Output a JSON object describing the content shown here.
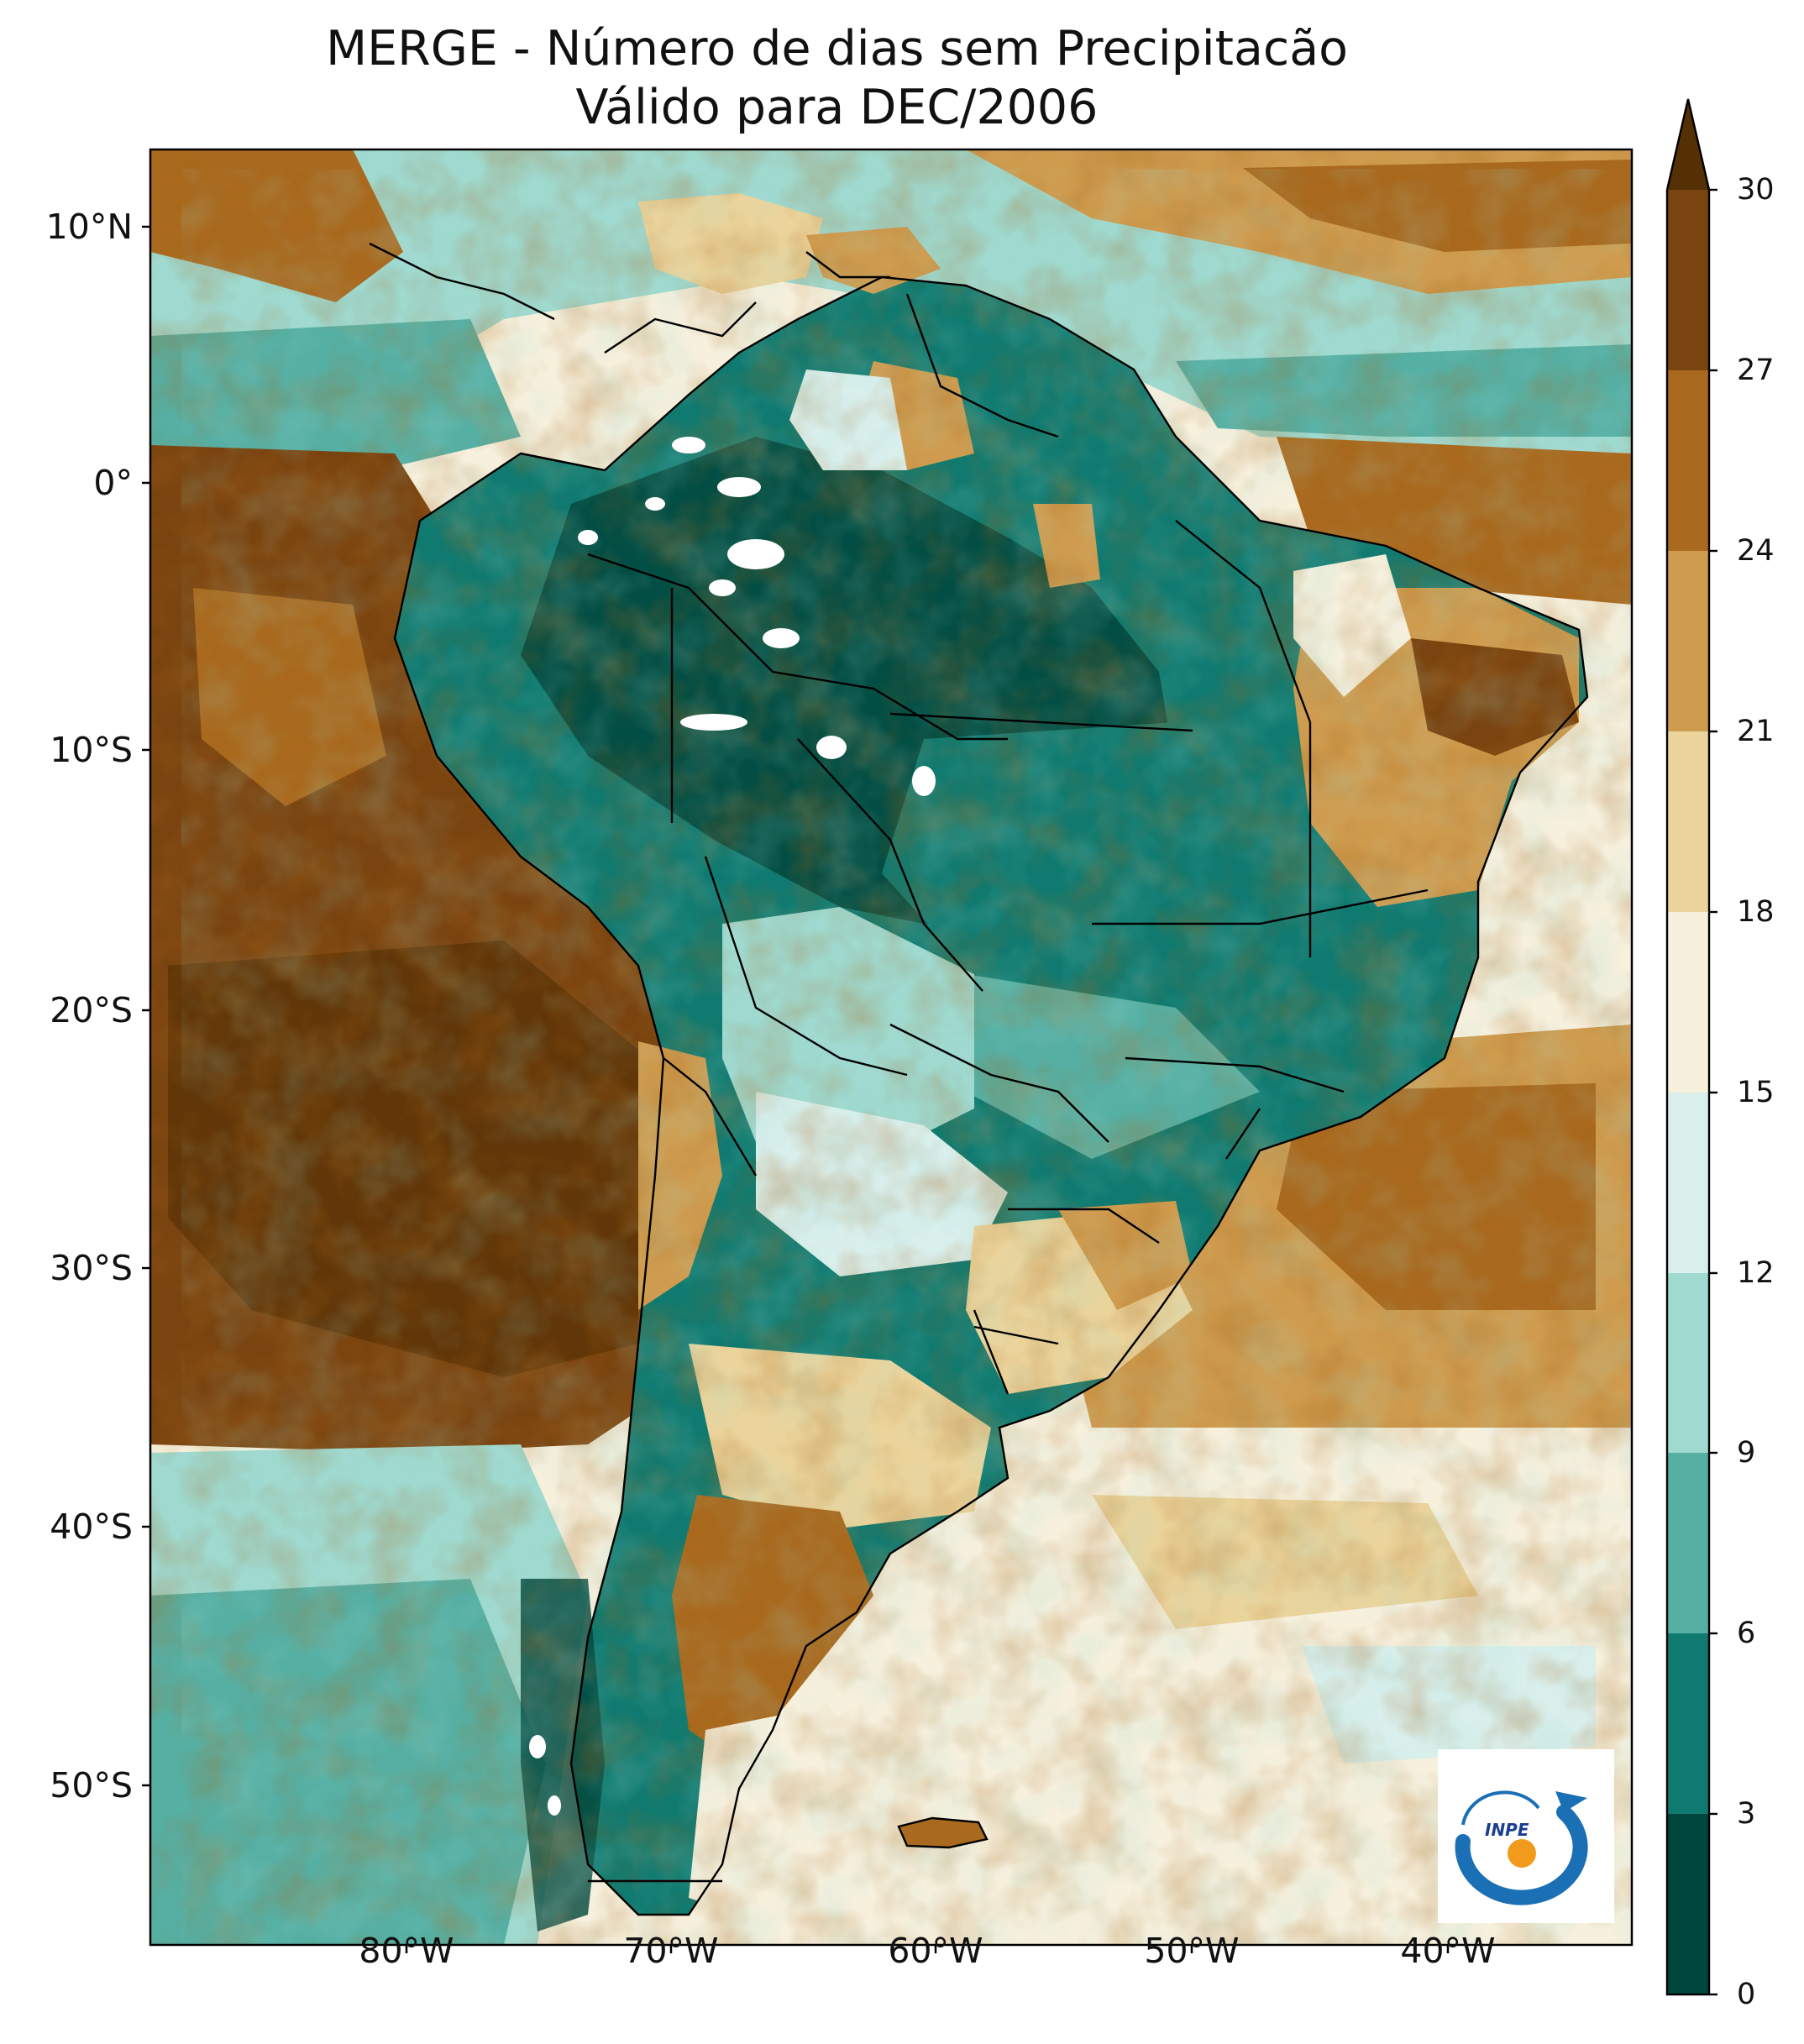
{
  "title": {
    "line1": "MERGE - Número de dias sem Precipitacão",
    "line2": "Válido para DEC/2006"
  },
  "map": {
    "variable": "Número de dias sem Precipitação",
    "source": "MERGE",
    "period": "DEC/2006",
    "lat_ticks": [
      "10°N",
      "0°",
      "10°S",
      "20°S",
      "30°S",
      "40°S",
      "50°S"
    ],
    "lon_ticks": [
      "80°W",
      "70°W",
      "60°W",
      "50°W",
      "40°W"
    ]
  },
  "colorbar": {
    "levels": [
      "0",
      "3",
      "6",
      "9",
      "12",
      "15",
      "18",
      "21",
      "24",
      "27",
      "30"
    ],
    "colors": [
      "#01463c",
      "#107a70",
      "#56afa3",
      "#9fd9cf",
      "#d9efec",
      "#f6f0dd",
      "#ebd49c",
      "#cf9c4f",
      "#a9691e",
      "#7a4410"
    ],
    "extend_color": "#553005",
    "extend": "max"
  },
  "palette": {
    "ocean_dry": "#7a4410",
    "ocean_wet": "#56afa3",
    "land_wet": "#107a70",
    "no_data": "#ffffff"
  },
  "logo": {
    "text": "INPE",
    "ring_color": "#1a6fb5",
    "dot_color": "#f29a1b"
  }
}
